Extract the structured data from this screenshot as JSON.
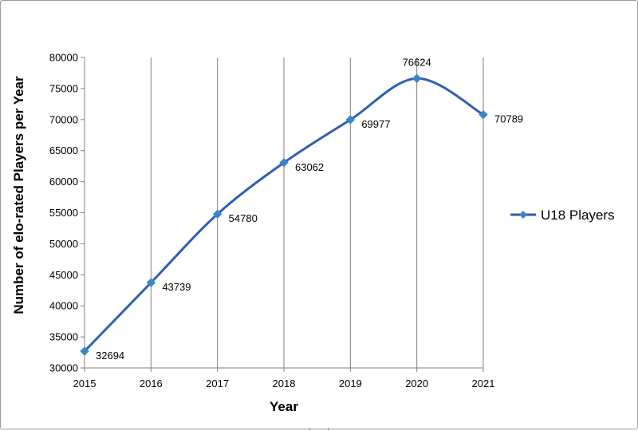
{
  "chart_data": {
    "type": "line",
    "smooth": true,
    "x": [
      "2015",
      "2016",
      "2017",
      "2018",
      "2019",
      "2020",
      "2021"
    ],
    "series": [
      {
        "name": "U18 Players",
        "values": [
          32694,
          43739,
          54780,
          63062,
          69977,
          76624,
          70789
        ],
        "color": "#2f5fb3",
        "marker": "diamond",
        "marker_color": "#3a86c8"
      }
    ],
    "data_labels": [
      "32694",
      "43739",
      "54780",
      "63062",
      "69977",
      "76624",
      "70789"
    ],
    "xlabel": "Year",
    "ylabel": "Number of elo-rated Players per Year",
    "ylim": [
      30000,
      80000
    ],
    "yticks": [
      "30000",
      "35000",
      "40000",
      "45000",
      "50000",
      "55000",
      "60000",
      "65000",
      "70000",
      "75000",
      "80000"
    ],
    "grid": "vertical",
    "legend": "right"
  }
}
